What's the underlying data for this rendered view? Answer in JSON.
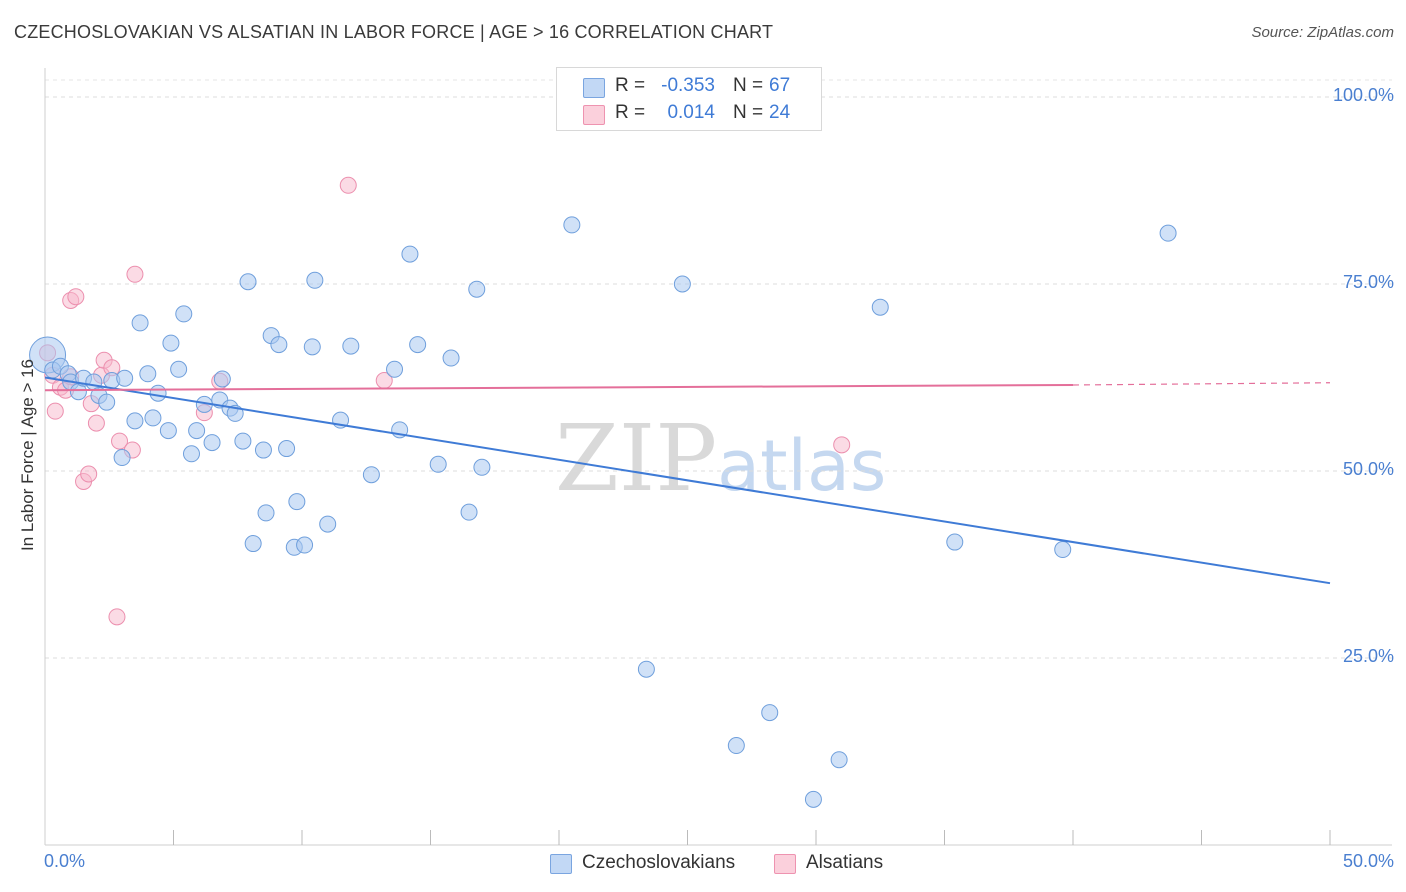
{
  "header": {
    "title": "CZECHOSLOVAKIAN VS ALSATIAN IN LABOR FORCE | AGE > 16 CORRELATION CHART",
    "source": "Source: ZipAtlas.com"
  },
  "legend": {
    "rows": [
      {
        "r_label": "R =",
        "r_value": "-0.353",
        "n_label": "N =",
        "n_value": "67",
        "color": "#aac8f0"
      },
      {
        "r_label": "R =",
        "r_value": "0.014",
        "n_label": "N =",
        "n_value": "24",
        "color": "#f7b8cb"
      }
    ]
  },
  "bottom_legend": {
    "items": [
      {
        "label": "Czechoslovakians",
        "color": "#aac8f0"
      },
      {
        "label": "Alsatians",
        "color": "#f7b8cb"
      }
    ]
  },
  "watermark": {
    "zip": "ZIP",
    "atlas": "atlas"
  },
  "chart_data": {
    "type": "scatter",
    "title": "CZECHOSLOVAKIAN VS ALSATIAN IN LABOR FORCE | AGE > 16 CORRELATION CHART",
    "xlabel": "",
    "ylabel": "In Labor Force | Age > 16",
    "xlim": [
      0,
      50
    ],
    "ylim": [
      0,
      100
    ],
    "x_tick_labels": [
      "0.0%",
      "50.0%"
    ],
    "y_tick_labels": [
      "100.0%",
      "75.0%",
      "50.0%",
      "25.0%"
    ],
    "y_ticks": [
      100,
      75,
      50,
      25
    ],
    "grid": "horizontal dashed",
    "legend_placement": "top-center",
    "colors": {
      "blue": "#3f7bd6",
      "pink": "#e46f9a",
      "blue_fill": "#aac8f0",
      "pink_fill": "#f7b8cb"
    },
    "series": [
      {
        "name": "Czechoslovakians",
        "points": [
          [
            0.1,
            65.5
          ],
          [
            0.3,
            63.5
          ],
          [
            0.6,
            64
          ],
          [
            0.9,
            63
          ],
          [
            1.0,
            61.9
          ],
          [
            1.3,
            60.6
          ],
          [
            1.5,
            62.4
          ],
          [
            1.9,
            61.9
          ],
          [
            2.1,
            60.1
          ],
          [
            2.4,
            59.2
          ],
          [
            2.6,
            62.1
          ],
          [
            3.0,
            51.8
          ],
          [
            3.1,
            62.4
          ],
          [
            3.5,
            56.7
          ],
          [
            3.7,
            69.8
          ],
          [
            4.0,
            63.0
          ],
          [
            4.2,
            57.1
          ],
          [
            4.4,
            60.4
          ],
          [
            4.8,
            55.4
          ],
          [
            4.9,
            67.1
          ],
          [
            5.2,
            63.6
          ],
          [
            5.4,
            71.0
          ],
          [
            5.7,
            52.3
          ],
          [
            5.9,
            55.4
          ],
          [
            6.2,
            58.9
          ],
          [
            6.5,
            53.8
          ],
          [
            6.8,
            59.5
          ],
          [
            6.9,
            62.3
          ],
          [
            7.2,
            58.4
          ],
          [
            7.4,
            57.7
          ],
          [
            7.7,
            54.0
          ],
          [
            7.9,
            75.3
          ],
          [
            8.1,
            40.3
          ],
          [
            8.5,
            52.8
          ],
          [
            8.6,
            44.4
          ],
          [
            8.8,
            68.1
          ],
          [
            9.1,
            66.9
          ],
          [
            9.4,
            53.0
          ],
          [
            9.7,
            39.8
          ],
          [
            9.8,
            45.9
          ],
          [
            10.1,
            40.1
          ],
          [
            10.4,
            66.6
          ],
          [
            10.5,
            75.5
          ],
          [
            11.0,
            42.9
          ],
          [
            11.5,
            56.8
          ],
          [
            11.9,
            66.7
          ],
          [
            12.7,
            49.5
          ],
          [
            13.6,
            63.6
          ],
          [
            13.8,
            55.5
          ],
          [
            14.2,
            79.0
          ],
          [
            14.5,
            66.9
          ],
          [
            15.3,
            50.9
          ],
          [
            15.8,
            65.1
          ],
          [
            16.5,
            44.5
          ],
          [
            16.8,
            74.3
          ],
          [
            17.0,
            50.5
          ],
          [
            20.5,
            82.9
          ],
          [
            23.4,
            23.5
          ],
          [
            24.8,
            75.0
          ],
          [
            26.9,
            13.3
          ],
          [
            28.2,
            17.7
          ],
          [
            29.9,
            6.1
          ],
          [
            30.9,
            11.4
          ],
          [
            32.5,
            71.9
          ],
          [
            35.4,
            40.5
          ],
          [
            39.6,
            39.5
          ],
          [
            43.7,
            81.8
          ]
        ],
        "trend": {
          "x": [
            0,
            50
          ],
          "y": [
            62.5,
            35.0
          ]
        }
      },
      {
        "name": "Alsatians",
        "points": [
          [
            0.1,
            65.8
          ],
          [
            0.3,
            62.8
          ],
          [
            0.4,
            58.0
          ],
          [
            0.6,
            61.2
          ],
          [
            0.8,
            60.8
          ],
          [
            1.0,
            62.6
          ],
          [
            1.0,
            72.8
          ],
          [
            1.2,
            73.3
          ],
          [
            1.5,
            48.6
          ],
          [
            1.7,
            49.6
          ],
          [
            1.8,
            59.0
          ],
          [
            2.0,
            56.4
          ],
          [
            2.2,
            62.8
          ],
          [
            2.3,
            64.8
          ],
          [
            2.6,
            63.8
          ],
          [
            2.8,
            30.5
          ],
          [
            2.9,
            54.0
          ],
          [
            3.4,
            52.8
          ],
          [
            3.5,
            76.3
          ],
          [
            6.2,
            57.8
          ],
          [
            6.8,
            62.0
          ],
          [
            11.8,
            88.2
          ],
          [
            13.2,
            62.1
          ],
          [
            31.0,
            53.5
          ]
        ],
        "trend": {
          "x": [
            0,
            40,
            50
          ],
          "y": [
            60.8,
            61.5,
            61.8
          ]
        }
      }
    ]
  }
}
